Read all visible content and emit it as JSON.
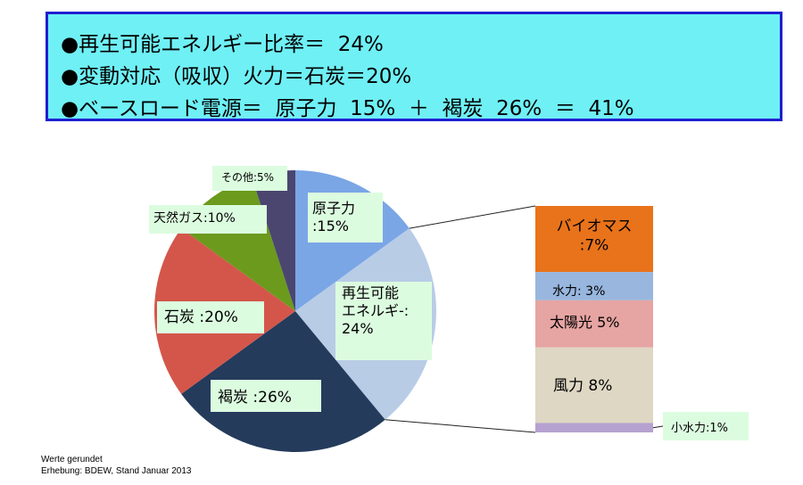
{
  "summary": {
    "line1": "●再生可能エネルギー比率＝  24%",
    "line2": "●変動対応（吸収）火力＝石炭＝20%",
    "line3": "●ベースロード電源＝  原子力  15%  ＋  褐炭  26%  ＝  41%"
  },
  "chart_data": [
    {
      "type": "pie",
      "slices": [
        {
          "label": "原子力\n:15%",
          "value": 15,
          "color": "#7aa6e6"
        },
        {
          "label": "再生可能\nエネルギ-:\n24%",
          "value": 24,
          "color": "#b8cce6"
        },
        {
          "label": "褐炭  :26%",
          "value": 26,
          "color": "#243b5c"
        },
        {
          "label": "石炭  :20%",
          "value": 20,
          "color": "#d4564a"
        },
        {
          "label": "天然ガス:10%",
          "value": 10,
          "color": "#6b9a1d"
        },
        {
          "label": "その他:5%",
          "value": 5,
          "color": "#4a4670"
        }
      ]
    },
    {
      "type": "bar",
      "stacked": true,
      "segments": [
        {
          "label": "バイオマス\n:7%",
          "value": 7,
          "color": "#e8731b"
        },
        {
          "label": "水力:  3%",
          "value": 3,
          "color": "#98b6de"
        },
        {
          "label": "太陽光  5%",
          "value": 5,
          "color": "#e6a4a2"
        },
        {
          "label": "風力  8%",
          "value": 8,
          "color": "#ded7c3"
        },
        {
          "label": "小水力:1%",
          "value": 1,
          "color": "#b6a2d0"
        }
      ]
    }
  ],
  "footer": {
    "note": "Werte gerundet",
    "source": "Erhebung: BDEW, Stand Januar 2013"
  }
}
